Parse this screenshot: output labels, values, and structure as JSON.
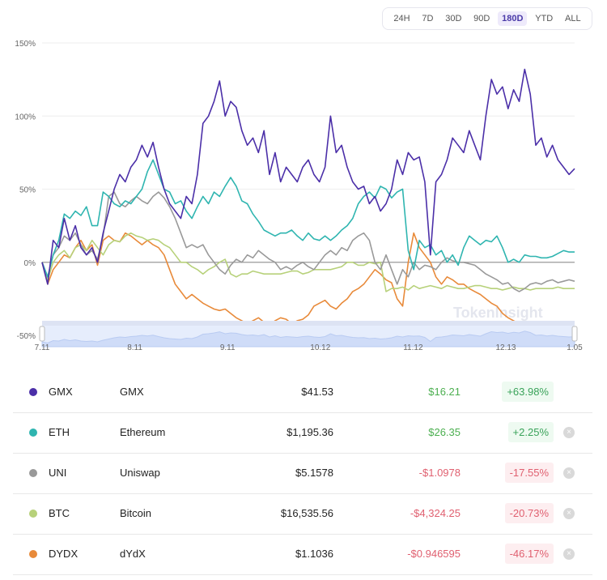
{
  "range_selector": {
    "options": [
      "24H",
      "7D",
      "30D",
      "90D",
      "180D",
      "YTD",
      "ALL"
    ],
    "active": "180D"
  },
  "watermark": "TokenInsight",
  "chart_data": {
    "type": "line",
    "title": "",
    "xlabel": "",
    "ylabel": "",
    "ylim": [
      -50,
      150
    ],
    "yticks": [
      "150%",
      "100%",
      "50%",
      "0%",
      "-50%"
    ],
    "ytick_values": [
      150,
      100,
      50,
      0,
      -50
    ],
    "xticks": [
      "7.11",
      "8.11",
      "9.11",
      "10.12",
      "11.12",
      "12.13",
      "1.05"
    ],
    "xtick_positions": [
      0,
      31,
      62,
      93,
      124,
      155,
      178
    ],
    "x_range": [
      0,
      178
    ],
    "grid": true,
    "legend": "table-below",
    "series": [
      {
        "name": "GMX",
        "color": "#4b2fa8",
        "values": [
          0,
          -15,
          15,
          10,
          30,
          15,
          25,
          10,
          5,
          10,
          0,
          20,
          35,
          50,
          60,
          55,
          65,
          70,
          80,
          72,
          82,
          65,
          50,
          40,
          35,
          30,
          45,
          40,
          60,
          95,
          100,
          110,
          124,
          100,
          110,
          106,
          90,
          80,
          85,
          75,
          90,
          60,
          75,
          55,
          65,
          60,
          55,
          65,
          70,
          60,
          55,
          65,
          100,
          75,
          80,
          65,
          55,
          50,
          52,
          40,
          45,
          35,
          40,
          50,
          70,
          60,
          75,
          70,
          72,
          55,
          5,
          55,
          60,
          70,
          85,
          80,
          75,
          90,
          80,
          70,
          100,
          125,
          115,
          120,
          105,
          118,
          110,
          132,
          115,
          80,
          85,
          72,
          80,
          70,
          65,
          60,
          64
        ]
      },
      {
        "name": "ETH",
        "color": "#2fb5b0",
        "values": [
          0,
          -10,
          5,
          15,
          33,
          30,
          35,
          32,
          38,
          25,
          25,
          48,
          45,
          40,
          38,
          42,
          40,
          45,
          50,
          62,
          70,
          60,
          50,
          48,
          40,
          42,
          35,
          30,
          38,
          45,
          40,
          48,
          45,
          52,
          58,
          52,
          42,
          40,
          33,
          28,
          22,
          20,
          18,
          20,
          20,
          22,
          18,
          15,
          20,
          16,
          15,
          18,
          15,
          18,
          22,
          25,
          30,
          40,
          45,
          48,
          44,
          52,
          50,
          44,
          48,
          50,
          8,
          -5,
          15,
          10,
          12,
          5,
          8,
          0,
          5,
          -2,
          10,
          18,
          15,
          12,
          15,
          14,
          18,
          10,
          0,
          2,
          0,
          5,
          4,
          4,
          3,
          3,
          4,
          6,
          8,
          7,
          7
        ]
      },
      {
        "name": "UNI",
        "color": "#999999",
        "values": [
          0,
          -10,
          5,
          10,
          18,
          15,
          20,
          12,
          5,
          8,
          2,
          18,
          45,
          48,
          40,
          38,
          42,
          45,
          42,
          40,
          45,
          48,
          44,
          38,
          30,
          20,
          10,
          12,
          10,
          12,
          5,
          0,
          -5,
          -8,
          -2,
          2,
          0,
          5,
          3,
          8,
          5,
          2,
          0,
          -5,
          -3,
          -5,
          -2,
          0,
          -3,
          -5,
          0,
          5,
          8,
          5,
          10,
          8,
          15,
          18,
          20,
          15,
          0,
          -5,
          5,
          -5,
          -15,
          -5,
          -10,
          0,
          -5,
          -2,
          -3,
          -5,
          0,
          3,
          1,
          0,
          0,
          -1,
          -2,
          -5,
          -8,
          -10,
          -12,
          -15,
          -14,
          -18,
          -20,
          -18,
          -15,
          -14,
          -15,
          -13,
          -12,
          -14,
          -13,
          -12,
          -13
        ]
      },
      {
        "name": "BTC",
        "color": "#b7d17a",
        "values": [
          0,
          -12,
          0,
          5,
          8,
          3,
          10,
          12,
          8,
          15,
          10,
          5,
          12,
          15,
          14,
          18,
          20,
          18,
          17,
          15,
          16,
          15,
          12,
          10,
          5,
          0,
          0,
          -3,
          -5,
          -8,
          -5,
          -3,
          0,
          2,
          -8,
          -10,
          -8,
          -8,
          -6,
          -7,
          -8,
          -8,
          -8,
          -8,
          -7,
          -6,
          -6,
          -8,
          -7,
          -5,
          -5,
          -5,
          -5,
          -4,
          -3,
          0,
          0,
          -2,
          -2,
          0,
          -1,
          0,
          -20,
          -18,
          -18,
          -17,
          -19,
          -16,
          -18,
          -17,
          -16,
          -17,
          -18,
          -16,
          -17,
          -18,
          -18,
          -17,
          -16,
          -16,
          -17,
          -18,
          -18,
          -19,
          -18,
          -17,
          -18,
          -18,
          -19,
          -18,
          -18,
          -18,
          -18,
          -17,
          -18,
          -18,
          -18
        ]
      },
      {
        "name": "DYDX",
        "color": "#e88a3a",
        "values": [
          0,
          -15,
          -5,
          0,
          5,
          3,
          10,
          15,
          8,
          12,
          -2,
          15,
          18,
          15,
          14,
          20,
          18,
          15,
          12,
          15,
          12,
          10,
          5,
          -5,
          -15,
          -20,
          -25,
          -22,
          -25,
          -28,
          -30,
          -32,
          -33,
          -32,
          -35,
          -38,
          -40,
          -42,
          -40,
          -38,
          -41,
          -43,
          -40,
          -38,
          -39,
          -42,
          -40,
          -39,
          -36,
          -30,
          -28,
          -26,
          -30,
          -32,
          -28,
          -25,
          -20,
          -18,
          -15,
          -10,
          -5,
          -8,
          -12,
          -14,
          -25,
          -30,
          0,
          20,
          10,
          5,
          0,
          -10,
          -15,
          -10,
          -12,
          -15,
          -15,
          -18,
          -20,
          -22,
          -25,
          -28,
          -30,
          -35,
          -38,
          -40,
          -42,
          -45,
          -48,
          -48,
          -45,
          -44,
          -43,
          -42,
          -42,
          -43,
          -46
        ]
      }
    ]
  },
  "table": {
    "rows": [
      {
        "symbol": "GMX",
        "name": "GMX",
        "price": "$41.53",
        "change": "$16.21",
        "percent": "+63.98%",
        "direction": "pos",
        "color": "#4b2fa8",
        "removable": false
      },
      {
        "symbol": "ETH",
        "name": "Ethereum",
        "price": "$1,195.36",
        "change": "$26.35",
        "percent": "+2.25%",
        "direction": "pos",
        "color": "#2fb5b0",
        "removable": true
      },
      {
        "symbol": "UNI",
        "name": "Uniswap",
        "price": "$5.1578",
        "change": "-$1.0978",
        "percent": "-17.55%",
        "direction": "neg",
        "color": "#999999",
        "removable": true
      },
      {
        "symbol": "BTC",
        "name": "Bitcoin",
        "price": "$16,535.56",
        "change": "-$4,324.25",
        "percent": "-20.73%",
        "direction": "neg",
        "color": "#b7d17a",
        "removable": true
      },
      {
        "symbol": "DYDX",
        "name": "dYdX",
        "price": "$1.1036",
        "change": "-$0.946595",
        "percent": "-46.17%",
        "direction": "neg",
        "color": "#e88a3a",
        "removable": true
      }
    ],
    "remove_icon": "×"
  }
}
